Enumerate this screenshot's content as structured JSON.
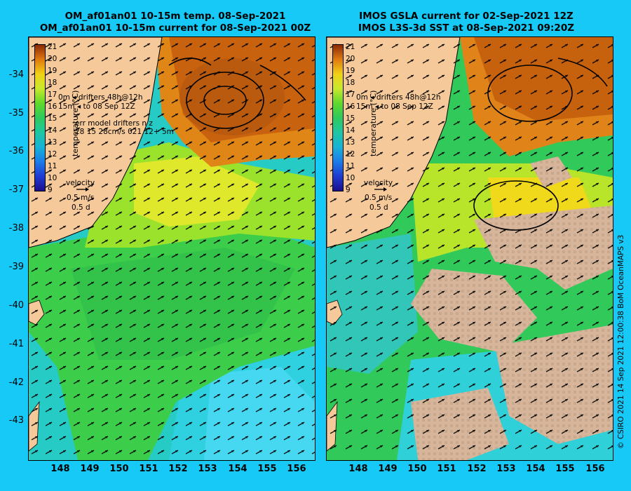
{
  "left": {
    "title_line1": "OM_af01an01 10-15m temp. 08-Sep-2021",
    "title_line2": "OM_af01an01 10-15m current for 08-Sep-2021 00Z",
    "drifter_line1": "0m  ◂ drifters 48h@12h",
    "drifter_line2": "15m ◂ to 08 Sep 12Z",
    "err_line1": "err model drifters n z",
    "err_line2": "28 15 28cm/s 021 12+ 5m",
    "velocity_label": "velocity",
    "velocity_scale": "0.5 m/s",
    "velocity_time": "0.5 d"
  },
  "right": {
    "title_line1": "IMOS GSLA current for 02-Sep-2021 12Z",
    "title_line2": "IMOS L3S-3d SST at 08-Sep-2021 09:20Z",
    "drifter_line1": "0m  ◂ drifters 48h@12h",
    "drifter_line2": "15m ◂ to 08 Sep 12Z",
    "velocity_label": "velocity",
    "velocity_scale": "0.5 m/s",
    "velocity_time": "0.5 d"
  },
  "colorbar": {
    "label": "temperature (°C)",
    "ticks": [
      "21",
      "20",
      "19",
      "18",
      "17",
      "16",
      "15",
      "14",
      "13",
      "12",
      "11",
      "10",
      "9"
    ]
  },
  "map_axes": {
    "lat_labels": [
      "-34",
      "-35",
      "-36",
      "-37",
      "-38",
      "-39",
      "-40",
      "-41",
      "-42",
      "-43"
    ],
    "lon_labels": [
      "148",
      "149",
      "150",
      "151",
      "152",
      "153",
      "154",
      "155",
      "156"
    ]
  },
  "credit": "© CSIRO 2021   14 Sep 2021 12:00:38 BoM OceanMAPS v3",
  "colors": {
    "background": "#17c9f7",
    "land": "#f5c99a",
    "cloud_mask": "#d7b59a",
    "warm_core": "#c8610f",
    "front_yellow": "#e2e82a",
    "shelf_green": "#3fcf3a",
    "cool_cyan": "#25c8c2"
  }
}
